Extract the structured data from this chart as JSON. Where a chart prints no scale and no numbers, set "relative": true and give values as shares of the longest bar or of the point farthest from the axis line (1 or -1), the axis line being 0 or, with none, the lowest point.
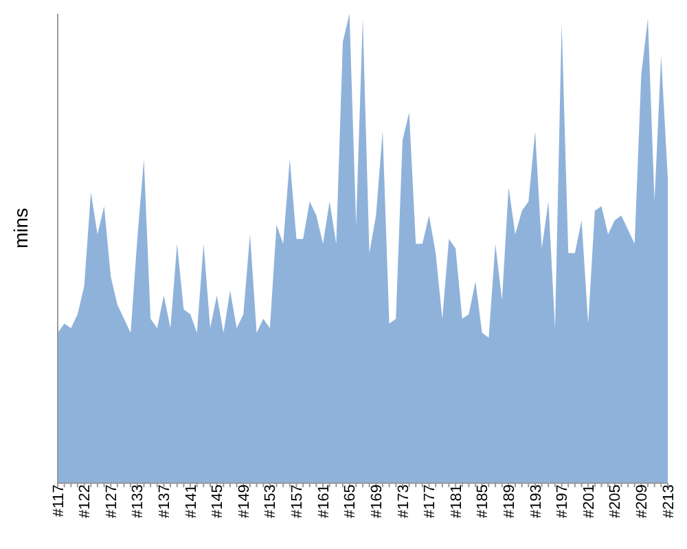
{
  "chart_data": {
    "type": "area",
    "ylabel": "mins",
    "relative": true,
    "color": "#8fb2da",
    "grid": false,
    "legend": false,
    "categories": [
      "#117",
      null,
      null,
      null,
      "#122",
      null,
      null,
      null,
      "#127",
      null,
      null,
      null,
      "#133",
      null,
      null,
      null,
      "#137",
      null,
      null,
      null,
      "#141",
      null,
      null,
      null,
      "#145",
      null,
      null,
      null,
      "#149",
      null,
      null,
      null,
      "#153",
      null,
      null,
      null,
      "#157",
      null,
      null,
      null,
      "#161",
      null,
      null,
      null,
      "#165",
      null,
      null,
      null,
      "#169",
      null,
      null,
      null,
      "#173",
      null,
      null,
      null,
      "#177",
      null,
      null,
      null,
      "#181",
      null,
      null,
      null,
      "#185",
      null,
      null,
      null,
      "#189",
      null,
      null,
      null,
      "#193",
      null,
      null,
      null,
      "#197",
      null,
      null,
      null,
      "#201",
      null,
      null,
      null,
      "#205",
      null,
      null,
      null,
      "#209",
      null,
      null,
      null,
      "#213"
    ],
    "values": [
      0.32,
      0.34,
      0.33,
      0.36,
      0.42,
      0.62,
      0.53,
      0.59,
      0.44,
      0.38,
      0.35,
      0.32,
      0.52,
      0.69,
      0.35,
      0.33,
      0.4,
      0.33,
      0.51,
      0.37,
      0.36,
      0.32,
      0.51,
      0.33,
      0.4,
      0.32,
      0.41,
      0.33,
      0.36,
      0.53,
      0.32,
      0.35,
      0.33,
      0.55,
      0.51,
      0.69,
      0.52,
      0.52,
      0.6,
      0.57,
      0.51,
      0.6,
      0.51,
      0.94,
      1,
      0.55,
      0.99,
      0.49,
      0.57,
      0.75,
      0.34,
      0.35,
      0.73,
      0.79,
      0.51,
      0.51,
      0.57,
      0.49,
      0.35,
      0.52,
      0.5,
      0.35,
      0.36,
      0.43,
      0.32,
      0.31,
      0.51,
      0.39,
      0.63,
      0.53,
      0.58,
      0.6,
      0.75,
      0.5,
      0.6,
      0.33,
      0.98,
      0.49,
      0.49,
      0.56,
      0.34,
      0.58,
      0.59,
      0.53,
      0.56,
      0.57,
      0.54,
      0.51,
      0.87,
      0.99,
      0.6,
      0.91,
      0.65
    ]
  }
}
